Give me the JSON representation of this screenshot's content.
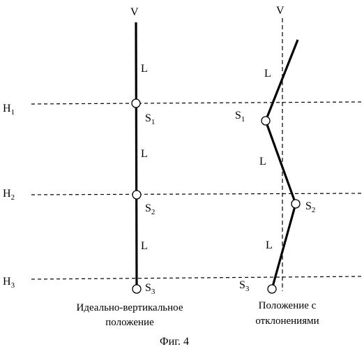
{
  "figure": {
    "caption": "Фиг. 4",
    "vertical_axis_label": "V",
    "segment_label": "L",
    "horizon_labels": [
      {
        "main": "H",
        "sub": "1"
      },
      {
        "main": "H",
        "sub": "2"
      },
      {
        "main": "H",
        "sub": "3"
      }
    ],
    "left_panel": {
      "caption_line1": "Идеально-вертикальное",
      "caption_line2": "положение",
      "nodes": [
        {
          "main": "S",
          "sub": "1"
        },
        {
          "main": "S",
          "sub": "2"
        },
        {
          "main": "S",
          "sub": "3"
        }
      ]
    },
    "right_panel": {
      "caption_line1": "Положение с",
      "caption_line2": "отклонениями",
      "nodes": [
        {
          "main": "S",
          "sub": "1"
        },
        {
          "main": "S",
          "sub": "2"
        },
        {
          "main": "S",
          "sub": "3"
        }
      ]
    }
  }
}
